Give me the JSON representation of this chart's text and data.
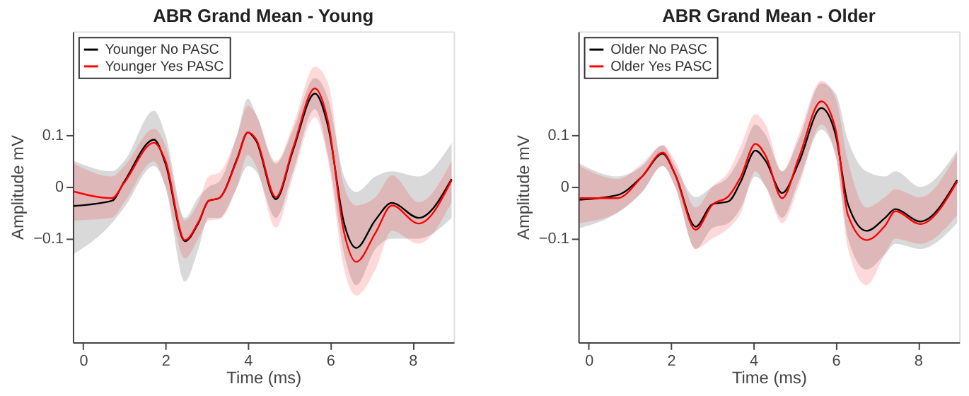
{
  "chart_data": [
    {
      "type": "line",
      "title": "ABR Grand Mean -   Young",
      "xlabel": "Time (ms)",
      "ylabel": "Amplitude mV",
      "xlim": [
        -0.25,
        9
      ],
      "ylim": [
        -0.3,
        0.3
      ],
      "xticks": [
        0,
        2,
        4,
        6,
        8
      ],
      "yticks": [
        -0.1,
        0,
        0.1
      ],
      "grid": false,
      "legend": "top left",
      "marker": "none",
      "line_style": "solid",
      "x": [
        -0.23,
        0.7,
        1.0,
        1.72,
        2.0,
        2.47,
        2.8,
        3.05,
        3.3,
        3.74,
        4.0,
        4.2,
        4.68,
        5.1,
        5.63,
        5.95,
        6.34,
        6.63,
        7.1,
        7.5,
        8.15,
        8.95
      ],
      "series": [
        {
          "name": "Younger No PASC",
          "color": "#000000",
          "values": [
            -0.037,
            -0.027,
            0.01,
            0.091,
            0.045,
            -0.105,
            -0.07,
            -0.027,
            -0.022,
            0.054,
            0.105,
            0.089,
            -0.024,
            0.071,
            0.18,
            0.116,
            -0.071,
            -0.118,
            -0.064,
            -0.031,
            -0.06,
            0.015
          ],
          "lower": [
            -0.13,
            -0.07,
            -0.04,
            0.04,
            0.0,
            -0.183,
            -0.12,
            -0.06,
            -0.06,
            0.0,
            0.04,
            0.03,
            -0.06,
            0.03,
            0.15,
            0.06,
            -0.13,
            -0.19,
            -0.12,
            -0.1,
            -0.1,
            -0.06
          ],
          "upper": [
            0.05,
            0.03,
            0.05,
            0.147,
            0.1,
            -0.06,
            -0.02,
            0.0,
            0.01,
            0.1,
            0.17,
            0.14,
            0.045,
            0.11,
            0.21,
            0.17,
            0.02,
            -0.01,
            0.02,
            0.03,
            0.02,
            0.085
          ]
        },
        {
          "name": "Younger Yes PASC",
          "color": "#ff0000",
          "values": [
            -0.009,
            -0.022,
            0.008,
            0.085,
            0.05,
            -0.103,
            -0.068,
            -0.027,
            -0.022,
            0.052,
            0.105,
            0.092,
            -0.02,
            0.075,
            0.19,
            0.125,
            -0.089,
            -0.145,
            -0.089,
            -0.036,
            -0.071,
            0.013
          ],
          "lower": [
            -0.065,
            -0.06,
            -0.03,
            0.049,
            0.0,
            -0.138,
            -0.1,
            -0.065,
            -0.063,
            0.0,
            0.062,
            0.04,
            -0.079,
            0.02,
            0.134,
            0.05,
            -0.16,
            -0.21,
            -0.16,
            -0.085,
            -0.11,
            -0.03
          ],
          "upper": [
            0.045,
            0.02,
            0.04,
            0.112,
            0.08,
            -0.065,
            -0.03,
            0.02,
            0.027,
            0.1,
            0.156,
            0.14,
            0.049,
            0.12,
            0.232,
            0.2,
            0.0,
            -0.036,
            -0.02,
            0.022,
            -0.03,
            0.05
          ]
        }
      ]
    },
    {
      "type": "line",
      "title": "ABR Grand Mean -   Older",
      "xlabel": "Time (ms)",
      "ylabel": "Amplitude mV",
      "xlim": [
        -0.25,
        9
      ],
      "ylim": [
        -0.3,
        0.3
      ],
      "xticks": [
        0,
        2,
        4,
        6,
        8
      ],
      "yticks": [
        -0.1,
        0,
        0.1
      ],
      "grid": false,
      "legend": "top left",
      "marker": "none",
      "line_style": "solid",
      "x": [
        -0.22,
        0.7,
        1.3,
        1.8,
        2.1,
        2.6,
        3.0,
        3.4,
        3.7,
        4.05,
        4.3,
        4.7,
        5.1,
        5.65,
        6.0,
        6.3,
        6.75,
        7.2,
        7.45,
        8.05,
        8.95
      ],
      "series": [
        {
          "name": "Older No PASC",
          "color": "#000000",
          "values": [
            -0.025,
            -0.016,
            0.02,
            0.064,
            0.024,
            -0.077,
            -0.034,
            -0.028,
            0.011,
            0.07,
            0.05,
            -0.012,
            0.046,
            0.152,
            0.1,
            -0.034,
            -0.085,
            -0.06,
            -0.043,
            -0.067,
            0.013
          ],
          "lower": [
            -0.08,
            -0.05,
            -0.01,
            0.04,
            0.0,
            -0.12,
            -0.08,
            -0.07,
            -0.04,
            0.02,
            0.0,
            -0.06,
            0.01,
            0.11,
            0.06,
            -0.1,
            -0.16,
            -0.13,
            -0.11,
            -0.12,
            -0.07
          ],
          "upper": [
            0.045,
            0.02,
            0.04,
            0.08,
            0.04,
            -0.02,
            0.0,
            0.02,
            0.06,
            0.12,
            0.1,
            0.03,
            0.09,
            0.2,
            0.18,
            0.09,
            0.03,
            0.02,
            0.03,
            0.0,
            0.07
          ]
        },
        {
          "name": "Older Yes PASC",
          "color": "#ff0000",
          "values": [
            -0.022,
            -0.022,
            0.02,
            0.066,
            0.024,
            -0.083,
            -0.035,
            -0.018,
            0.02,
            0.083,
            0.06,
            -0.022,
            0.055,
            0.165,
            0.11,
            -0.055,
            -0.103,
            -0.075,
            -0.047,
            -0.072,
            0.01
          ],
          "lower": [
            -0.07,
            -0.05,
            -0.01,
            0.04,
            0.0,
            -0.12,
            -0.1,
            -0.08,
            -0.05,
            0.03,
            0.0,
            -0.07,
            0.0,
            0.12,
            0.06,
            -0.12,
            -0.19,
            -0.13,
            -0.1,
            -0.11,
            -0.055
          ],
          "upper": [
            0.04,
            0.015,
            0.045,
            0.08,
            0.05,
            -0.04,
            0.0,
            0.03,
            0.08,
            0.14,
            0.12,
            0.03,
            0.1,
            0.205,
            0.17,
            0.05,
            -0.04,
            -0.02,
            -0.005,
            -0.02,
            0.065
          ]
        }
      ]
    }
  ]
}
